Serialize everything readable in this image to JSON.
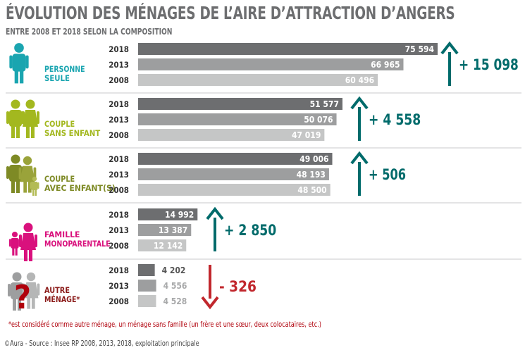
{
  "title": "ÉVOLUTION DES MÉNAGES DE L’AIRE D’ATTRACTION D’ANGERS",
  "subtitle": "ENTRE 2008 ET 2018 SELON LA COMPOSITION",
  "footnote": "*est considéré comme autre ménage, un ménage sans famille (un frère et une sœur, deux colocataires, etc.)",
  "source": "©Aura - Source : Insee RP 2008, 2013, 2018, exploitation principale",
  "colors": {
    "bar_2018": "#6d6e70",
    "bar_2013": "#9d9e9f",
    "bar_2008": "#c5c6c6",
    "arrow_up": "#006b6b",
    "arrow_down": "#c1272d",
    "label_teal": "#1aa5b0",
    "label_lime": "#a3b81f",
    "label_olive": "#7e8a25",
    "label_magenta": "#d9117d",
    "label_darkred": "#8c1d1b"
  },
  "chart_data": {
    "type": "bar",
    "orientation": "horizontal",
    "title": "ÉVOLUTION DES MÉNAGES DE L’AIRE D’ATTRACTION D’ANGERS",
    "subtitle": "ENTRE 2008 ET 2018 SELON LA COMPOSITION",
    "years": [
      "2018",
      "2013",
      "2008"
    ],
    "groups": [
      {
        "label": "PERSONNE SEULE",
        "label_lines": [
          "PERSONNE",
          "SEULE"
        ],
        "color_key": "label_teal",
        "icon": "single-person-icon",
        "values": [
          75594,
          66965,
          60496
        ],
        "value_labels": [
          "75 594",
          "66 965",
          "60 496"
        ],
        "change": "+ 15 098",
        "direction": "up"
      },
      {
        "label": "COUPLE SANS ENFANT",
        "label_lines": [
          "COUPLE",
          "SANS ENFANT"
        ],
        "color_key": "label_lime",
        "icon": "couple-icon",
        "values": [
          51577,
          50076,
          47019
        ],
        "value_labels": [
          "51 577",
          "50 076",
          "47 019"
        ],
        "change": "+ 4 558",
        "direction": "up"
      },
      {
        "label": "COUPLE AVEC ENFANT(S)",
        "label_lines": [
          "COUPLE",
          "AVEC ENFANT(S)"
        ],
        "color_key": "label_olive",
        "icon": "family-icon",
        "values": [
          49006,
          48193,
          48500
        ],
        "value_labels": [
          "49 006",
          "48 193",
          "48 500"
        ],
        "change": "+ 506",
        "direction": "up"
      },
      {
        "label": "FAMILLE MONOPARENTALE",
        "label_lines": [
          "FAMILLE",
          "MONOPARENTALE"
        ],
        "color_key": "label_magenta",
        "icon": "single-parent-icon",
        "values": [
          14992,
          13387,
          12142
        ],
        "value_labels": [
          "14 992",
          "13 387",
          "12 142"
        ],
        "change": "+ 2 850",
        "direction": "up"
      },
      {
        "label": "AUTRE MÉNAGE*",
        "label_lines": [
          "AUTRE",
          "MÉNAGE*"
        ],
        "color_key": "label_darkred",
        "icon": "question-icon",
        "values": [
          4202,
          4556,
          4528
        ],
        "value_labels": [
          "4 202",
          "4 556",
          "4 528"
        ],
        "change": "- 326",
        "direction": "down"
      }
    ]
  }
}
